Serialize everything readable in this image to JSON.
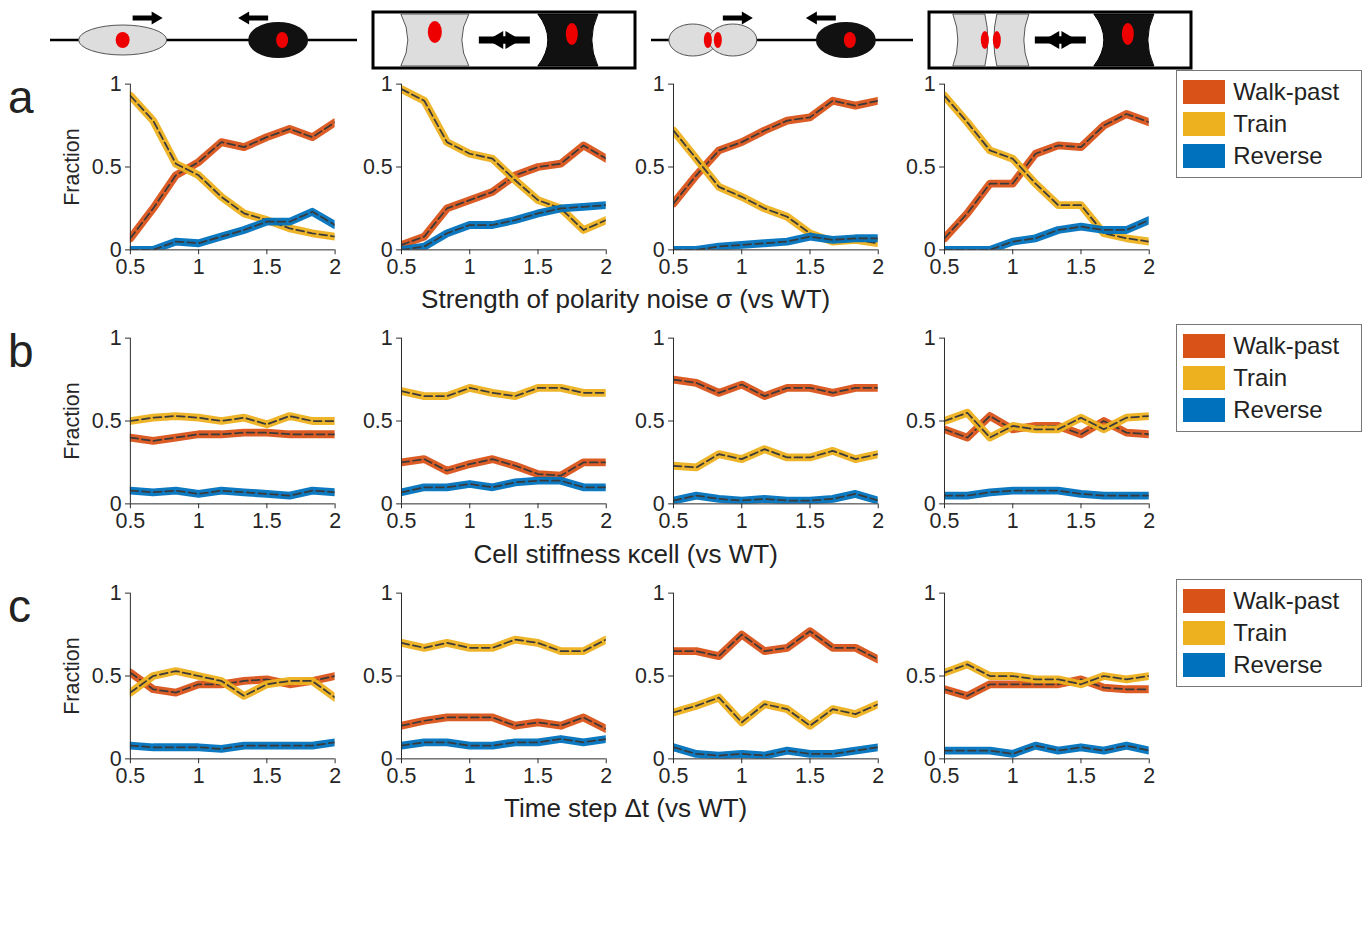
{
  "chart_data": [
    {
      "type": "line",
      "panel_label": "a",
      "xlabel": "Strength of polarity noise σ (vs WT)",
      "ylabel": "Fraction",
      "xlim": [
        0.5,
        2
      ],
      "xticks": [
        0.5,
        1,
        1.5,
        2
      ],
      "ylim": [
        0,
        1
      ],
      "yticks": [
        0,
        0.5,
        1
      ],
      "legend": "right",
      "x": [
        0.5,
        0.667,
        0.833,
        1,
        1.167,
        1.333,
        1.5,
        1.667,
        1.833,
        2
      ],
      "panels": [
        {
          "series": [
            {
              "name": "Walk-past",
              "color": "#D95319",
              "values": [
                0.07,
                0.25,
                0.45,
                0.53,
                0.65,
                0.62,
                0.68,
                0.73,
                0.68,
                0.77
              ]
            },
            {
              "name": "Train",
              "color": "#EDB120",
              "values": [
                0.93,
                0.78,
                0.52,
                0.45,
                0.32,
                0.22,
                0.18,
                0.13,
                0.1,
                0.08
              ]
            },
            {
              "name": "Reverse",
              "color": "#0072BD",
              "values": [
                0,
                0,
                0.05,
                0.04,
                0.08,
                0.12,
                0.17,
                0.17,
                0.23,
                0.15
              ]
            }
          ]
        },
        {
          "series": [
            {
              "name": "Walk-past",
              "color": "#D95319",
              "values": [
                0.03,
                0.08,
                0.25,
                0.3,
                0.35,
                0.45,
                0.5,
                0.52,
                0.63,
                0.55
              ]
            },
            {
              "name": "Train",
              "color": "#EDB120",
              "values": [
                0.97,
                0.9,
                0.65,
                0.58,
                0.55,
                0.42,
                0.3,
                0.25,
                0.12,
                0.18
              ]
            },
            {
              "name": "Reverse",
              "color": "#0072BD",
              "values": [
                0,
                0.02,
                0.1,
                0.15,
                0.15,
                0.18,
                0.22,
                0.25,
                0.26,
                0.27
              ]
            }
          ]
        },
        {
          "series": [
            {
              "name": "Walk-past",
              "color": "#D95319",
              "values": [
                0.28,
                0.45,
                0.6,
                0.65,
                0.72,
                0.78,
                0.8,
                0.9,
                0.87,
                0.9
              ]
            },
            {
              "name": "Train",
              "color": "#EDB120",
              "values": [
                0.72,
                0.55,
                0.38,
                0.32,
                0.25,
                0.2,
                0.1,
                0.05,
                0.06,
                0.04
              ]
            },
            {
              "name": "Reverse",
              "color": "#0072BD",
              "values": [
                0,
                0,
                0.02,
                0.03,
                0.04,
                0.05,
                0.08,
                0.06,
                0.07,
                0.07
              ]
            }
          ]
        },
        {
          "series": [
            {
              "name": "Walk-past",
              "color": "#D95319",
              "values": [
                0.07,
                0.22,
                0.4,
                0.4,
                0.58,
                0.63,
                0.62,
                0.75,
                0.82,
                0.77
              ]
            },
            {
              "name": "Train",
              "color": "#EDB120",
              "values": [
                0.93,
                0.77,
                0.6,
                0.55,
                0.4,
                0.27,
                0.27,
                0.1,
                0.07,
                0.05
              ]
            },
            {
              "name": "Reverse",
              "color": "#0072BD",
              "values": [
                0,
                0,
                0,
                0.05,
                0.07,
                0.12,
                0.14,
                0.12,
                0.12,
                0.18
              ]
            }
          ]
        }
      ]
    },
    {
      "type": "line",
      "panel_label": "b",
      "xlabel": "Cell stiffness κcell (vs WT)",
      "ylabel": "Fraction",
      "xlim": [
        0.5,
        2
      ],
      "xticks": [
        0.5,
        1,
        1.5,
        2
      ],
      "ylim": [
        0,
        1
      ],
      "yticks": [
        0,
        0.5,
        1
      ],
      "legend": "right",
      "x": [
        0.5,
        0.667,
        0.833,
        1,
        1.167,
        1.333,
        1.5,
        1.667,
        1.833,
        2
      ],
      "panels": [
        {
          "series": [
            {
              "name": "Walk-past",
              "color": "#D95319",
              "values": [
                0.4,
                0.38,
                0.4,
                0.42,
                0.42,
                0.43,
                0.43,
                0.42,
                0.42,
                0.42
              ]
            },
            {
              "name": "Train",
              "color": "#EDB120",
              "values": [
                0.5,
                0.52,
                0.53,
                0.52,
                0.5,
                0.52,
                0.48,
                0.53,
                0.5,
                0.5
              ]
            },
            {
              "name": "Reverse",
              "color": "#0072BD",
              "values": [
                0.08,
                0.07,
                0.08,
                0.06,
                0.08,
                0.07,
                0.06,
                0.05,
                0.08,
                0.07
              ]
            }
          ]
        },
        {
          "series": [
            {
              "name": "Walk-past",
              "color": "#D95319",
              "values": [
                0.25,
                0.27,
                0.2,
                0.24,
                0.27,
                0.23,
                0.18,
                0.17,
                0.25,
                0.25
              ]
            },
            {
              "name": "Train",
              "color": "#EDB120",
              "values": [
                0.68,
                0.65,
                0.65,
                0.7,
                0.67,
                0.65,
                0.7,
                0.7,
                0.67,
                0.67
              ]
            },
            {
              "name": "Reverse",
              "color": "#0072BD",
              "values": [
                0.07,
                0.1,
                0.1,
                0.12,
                0.1,
                0.13,
                0.14,
                0.14,
                0.1,
                0.1
              ]
            }
          ]
        },
        {
          "series": [
            {
              "name": "Walk-past",
              "color": "#D95319",
              "values": [
                0.75,
                0.73,
                0.67,
                0.72,
                0.65,
                0.7,
                0.7,
                0.67,
                0.7,
                0.7
              ]
            },
            {
              "name": "Train",
              "color": "#EDB120",
              "values": [
                0.23,
                0.22,
                0.3,
                0.27,
                0.33,
                0.28,
                0.28,
                0.32,
                0.27,
                0.3
              ]
            },
            {
              "name": "Reverse",
              "color": "#0072BD",
              "values": [
                0.02,
                0.05,
                0.03,
                0.02,
                0.03,
                0.02,
                0.02,
                0.03,
                0.06,
                0.02
              ]
            }
          ]
        },
        {
          "series": [
            {
              "name": "Walk-past",
              "color": "#D95319",
              "values": [
                0.45,
                0.4,
                0.53,
                0.45,
                0.47,
                0.47,
                0.42,
                0.5,
                0.43,
                0.42
              ]
            },
            {
              "name": "Train",
              "color": "#EDB120",
              "values": [
                0.5,
                0.55,
                0.4,
                0.47,
                0.45,
                0.45,
                0.52,
                0.45,
                0.52,
                0.53
              ]
            },
            {
              "name": "Reverse",
              "color": "#0072BD",
              "values": [
                0.05,
                0.05,
                0.07,
                0.08,
                0.08,
                0.08,
                0.06,
                0.05,
                0.05,
                0.05
              ]
            }
          ]
        }
      ]
    },
    {
      "type": "line",
      "panel_label": "c",
      "xlabel": "Time step Δt (vs WT)",
      "ylabel": "Fraction",
      "xlim": [
        0.5,
        2
      ],
      "xticks": [
        0.5,
        1,
        1.5,
        2
      ],
      "ylim": [
        0,
        1
      ],
      "yticks": [
        0,
        0.5,
        1
      ],
      "legend": "right",
      "x": [
        0.5,
        0.667,
        0.833,
        1,
        1.167,
        1.333,
        1.5,
        1.667,
        1.833,
        2
      ],
      "panels": [
        {
          "series": [
            {
              "name": "Walk-past",
              "color": "#D95319",
              "values": [
                0.52,
                0.42,
                0.4,
                0.45,
                0.45,
                0.47,
                0.48,
                0.45,
                0.47,
                0.5
              ]
            },
            {
              "name": "Train",
              "color": "#EDB120",
              "values": [
                0.4,
                0.5,
                0.53,
                0.5,
                0.47,
                0.38,
                0.45,
                0.47,
                0.47,
                0.37
              ]
            },
            {
              "name": "Reverse",
              "color": "#0072BD",
              "values": [
                0.08,
                0.07,
                0.07,
                0.07,
                0.06,
                0.08,
                0.08,
                0.08,
                0.08,
                0.1
              ]
            }
          ]
        },
        {
          "series": [
            {
              "name": "Walk-past",
              "color": "#D95319",
              "values": [
                0.2,
                0.23,
                0.25,
                0.25,
                0.25,
                0.2,
                0.22,
                0.2,
                0.25,
                0.18
              ]
            },
            {
              "name": "Train",
              "color": "#EDB120",
              "values": [
                0.7,
                0.67,
                0.7,
                0.67,
                0.67,
                0.72,
                0.7,
                0.65,
                0.65,
                0.72
              ]
            },
            {
              "name": "Reverse",
              "color": "#0072BD",
              "values": [
                0.08,
                0.1,
                0.1,
                0.08,
                0.08,
                0.1,
                0.1,
                0.12,
                0.1,
                0.12
              ]
            }
          ]
        },
        {
          "series": [
            {
              "name": "Walk-past",
              "color": "#D95319",
              "values": [
                0.65,
                0.65,
                0.62,
                0.75,
                0.65,
                0.67,
                0.77,
                0.67,
                0.67,
                0.6
              ]
            },
            {
              "name": "Train",
              "color": "#EDB120",
              "values": [
                0.28,
                0.32,
                0.37,
                0.22,
                0.33,
                0.3,
                0.2,
                0.3,
                0.27,
                0.33
              ]
            },
            {
              "name": "Reverse",
              "color": "#0072BD",
              "values": [
                0.07,
                0.03,
                0.02,
                0.03,
                0.02,
                0.05,
                0.03,
                0.03,
                0.05,
                0.07
              ]
            }
          ]
        },
        {
          "series": [
            {
              "name": "Walk-past",
              "color": "#D95319",
              "values": [
                0.42,
                0.38,
                0.45,
                0.45,
                0.45,
                0.45,
                0.48,
                0.43,
                0.42,
                0.42
              ]
            },
            {
              "name": "Train",
              "color": "#EDB120",
              "values": [
                0.52,
                0.57,
                0.5,
                0.5,
                0.48,
                0.48,
                0.45,
                0.5,
                0.48,
                0.5
              ]
            },
            {
              "name": "Reverse",
              "color": "#0072BD",
              "values": [
                0.05,
                0.05,
                0.05,
                0.03,
                0.08,
                0.05,
                0.07,
                0.05,
                0.08,
                0.05
              ]
            }
          ]
        }
      ]
    }
  ]
}
